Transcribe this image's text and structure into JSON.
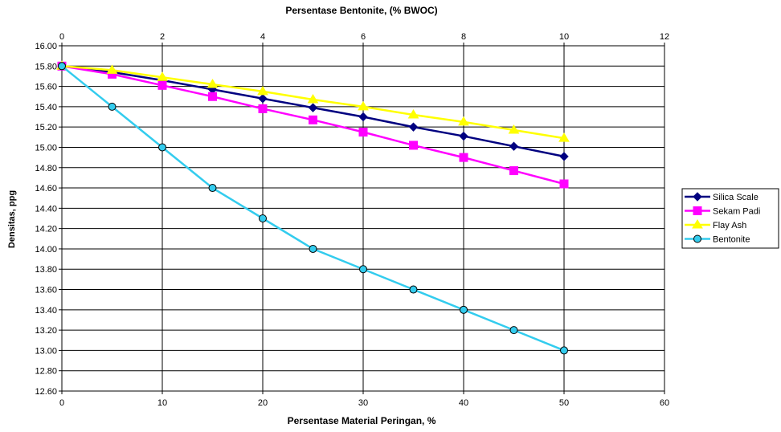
{
  "chart_data": {
    "type": "line",
    "title": "",
    "xlabel": "Persentase Material Peringan, %",
    "x2label": "Persentase Bentonite, (% BWOC)",
    "ylabel": "Densitas, ppg",
    "xlim": [
      0,
      60
    ],
    "x2lim": [
      0,
      12
    ],
    "ylim": [
      12.6,
      16.0
    ],
    "xticks": [
      "0",
      "10",
      "20",
      "30",
      "40",
      "50",
      "60"
    ],
    "x2ticks": [
      "0",
      "2",
      "4",
      "6",
      "8",
      "10",
      "12"
    ],
    "yticks": [
      "12.60",
      "12.80",
      "13.00",
      "13.20",
      "13.40",
      "13.60",
      "13.80",
      "14.00",
      "14.20",
      "14.40",
      "14.60",
      "14.80",
      "15.00",
      "15.20",
      "15.40",
      "15.60",
      "15.80",
      "16.00"
    ],
    "grid": true,
    "legend_position": "right",
    "series": [
      {
        "name": "Silica Scale",
        "color": "#000080",
        "marker": "diamond",
        "axis": "bottom",
        "x": [
          0,
          5,
          10,
          15,
          20,
          25,
          30,
          35,
          40,
          45,
          50
        ],
        "y": [
          15.8,
          15.74,
          15.66,
          15.57,
          15.48,
          15.39,
          15.3,
          15.2,
          15.11,
          15.01,
          14.91
        ]
      },
      {
        "name": "Sekam Padi",
        "color": "#ff00ff",
        "marker": "square",
        "axis": "bottom",
        "x": [
          0,
          5,
          10,
          15,
          20,
          25,
          30,
          35,
          40,
          45,
          50
        ],
        "y": [
          15.8,
          15.72,
          15.61,
          15.5,
          15.38,
          15.27,
          15.15,
          15.02,
          14.9,
          14.77,
          14.64
        ]
      },
      {
        "name": "Flay Ash",
        "color": "#ffff00",
        "marker": "triangle",
        "axis": "bottom",
        "x": [
          0,
          5,
          10,
          15,
          20,
          25,
          30,
          35,
          40,
          45,
          50
        ],
        "y": [
          15.8,
          15.76,
          15.69,
          15.62,
          15.55,
          15.47,
          15.4,
          15.32,
          15.25,
          15.17,
          15.09
        ]
      },
      {
        "name": "Bentonite",
        "color": "#33ccee",
        "marker": "circle",
        "axis": "bottom",
        "x": [
          0,
          5,
          10,
          15,
          20,
          25,
          30,
          35,
          40,
          45,
          50
        ],
        "y": [
          15.8,
          15.4,
          15.0,
          14.6,
          14.3,
          14.0,
          13.8,
          13.6,
          13.4,
          13.2,
          13.0
        ]
      }
    ]
  }
}
